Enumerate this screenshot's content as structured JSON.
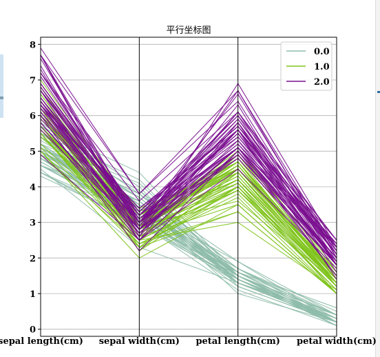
{
  "chart_data": {
    "type": "parallel_coordinates",
    "title": "平行坐标图",
    "axes": [
      "sepal length(cm)",
      "sepal width(cm)",
      "petal length(cm)",
      "petal width(cm)"
    ],
    "ylim": [
      -0.2,
      8.2
    ],
    "yticks": [
      0,
      1,
      2,
      3,
      4,
      5,
      6,
      7,
      8
    ],
    "grid": true,
    "legend_position": "top-right",
    "series": [
      {
        "name": "0.0",
        "color": "#8fbcab",
        "lines": [
          [
            5.1,
            3.5,
            1.4,
            0.2
          ],
          [
            4.9,
            3.0,
            1.4,
            0.2
          ],
          [
            4.7,
            3.2,
            1.3,
            0.2
          ],
          [
            4.6,
            3.1,
            1.5,
            0.2
          ],
          [
            5.0,
            3.6,
            1.4,
            0.2
          ],
          [
            5.4,
            3.9,
            1.7,
            0.4
          ],
          [
            4.6,
            3.4,
            1.4,
            0.3
          ],
          [
            5.0,
            3.4,
            1.5,
            0.2
          ],
          [
            4.4,
            2.9,
            1.4,
            0.2
          ],
          [
            4.9,
            3.1,
            1.5,
            0.1
          ],
          [
            5.4,
            3.7,
            1.5,
            0.2
          ],
          [
            4.8,
            3.4,
            1.6,
            0.2
          ],
          [
            4.8,
            3.0,
            1.4,
            0.1
          ],
          [
            4.3,
            3.0,
            1.1,
            0.1
          ],
          [
            5.8,
            4.0,
            1.2,
            0.2
          ],
          [
            5.7,
            4.4,
            1.5,
            0.4
          ],
          [
            5.4,
            3.9,
            1.3,
            0.4
          ],
          [
            5.1,
            3.5,
            1.4,
            0.3
          ],
          [
            5.7,
            3.8,
            1.7,
            0.3
          ],
          [
            5.1,
            3.8,
            1.5,
            0.3
          ],
          [
            5.4,
            3.4,
            1.7,
            0.2
          ],
          [
            5.1,
            3.7,
            1.5,
            0.4
          ],
          [
            4.6,
            3.6,
            1.0,
            0.2
          ],
          [
            5.1,
            3.3,
            1.7,
            0.5
          ],
          [
            4.8,
            3.4,
            1.9,
            0.2
          ],
          [
            5.0,
            3.0,
            1.6,
            0.2
          ],
          [
            5.0,
            3.4,
            1.6,
            0.4
          ],
          [
            5.2,
            3.5,
            1.5,
            0.2
          ],
          [
            5.2,
            3.4,
            1.4,
            0.2
          ],
          [
            4.7,
            3.2,
            1.6,
            0.2
          ],
          [
            4.8,
            3.1,
            1.6,
            0.2
          ],
          [
            5.4,
            3.4,
            1.5,
            0.4
          ],
          [
            5.2,
            4.1,
            1.5,
            0.1
          ],
          [
            5.5,
            4.2,
            1.4,
            0.2
          ],
          [
            4.9,
            3.1,
            1.5,
            0.2
          ],
          [
            5.0,
            3.2,
            1.2,
            0.2
          ],
          [
            5.5,
            3.5,
            1.3,
            0.2
          ],
          [
            4.9,
            3.6,
            1.4,
            0.1
          ],
          [
            4.4,
            3.0,
            1.3,
            0.2
          ],
          [
            5.1,
            3.4,
            1.5,
            0.2
          ],
          [
            5.0,
            3.5,
            1.3,
            0.3
          ],
          [
            4.5,
            2.3,
            1.3,
            0.3
          ],
          [
            4.4,
            3.2,
            1.3,
            0.2
          ],
          [
            5.0,
            3.5,
            1.6,
            0.6
          ],
          [
            5.1,
            3.8,
            1.9,
            0.4
          ],
          [
            4.8,
            3.0,
            1.4,
            0.3
          ],
          [
            5.1,
            3.8,
            1.6,
            0.2
          ],
          [
            4.6,
            3.2,
            1.4,
            0.2
          ],
          [
            5.3,
            3.7,
            1.5,
            0.2
          ],
          [
            5.0,
            3.3,
            1.4,
            0.2
          ]
        ]
      },
      {
        "name": "1.0",
        "color": "#7fc31c",
        "lines": [
          [
            7.0,
            3.2,
            4.7,
            1.4
          ],
          [
            6.4,
            3.2,
            4.5,
            1.5
          ],
          [
            6.9,
            3.1,
            4.9,
            1.5
          ],
          [
            5.5,
            2.3,
            4.0,
            1.3
          ],
          [
            6.5,
            2.8,
            4.6,
            1.5
          ],
          [
            5.7,
            2.8,
            4.5,
            1.3
          ],
          [
            6.3,
            3.3,
            4.7,
            1.6
          ],
          [
            4.9,
            2.4,
            3.3,
            1.0
          ],
          [
            6.6,
            2.9,
            4.6,
            1.3
          ],
          [
            5.2,
            2.7,
            3.9,
            1.4
          ],
          [
            5.0,
            2.0,
            3.5,
            1.0
          ],
          [
            5.9,
            3.0,
            4.2,
            1.5
          ],
          [
            6.0,
            2.2,
            4.0,
            1.0
          ],
          [
            6.1,
            2.9,
            4.7,
            1.4
          ],
          [
            5.6,
            2.9,
            3.6,
            1.3
          ],
          [
            6.7,
            3.1,
            4.4,
            1.4
          ],
          [
            5.6,
            3.0,
            4.5,
            1.5
          ],
          [
            5.8,
            2.7,
            4.1,
            1.0
          ],
          [
            6.2,
            2.2,
            4.5,
            1.5
          ],
          [
            5.6,
            2.5,
            3.9,
            1.1
          ],
          [
            5.9,
            3.2,
            4.8,
            1.8
          ],
          [
            6.1,
            2.8,
            4.0,
            1.3
          ],
          [
            6.3,
            2.5,
            4.9,
            1.5
          ],
          [
            6.1,
            2.8,
            4.7,
            1.2
          ],
          [
            6.4,
            2.9,
            4.3,
            1.3
          ],
          [
            6.6,
            3.0,
            4.4,
            1.4
          ],
          [
            6.8,
            2.8,
            4.8,
            1.4
          ],
          [
            6.7,
            3.0,
            5.0,
            1.7
          ],
          [
            6.0,
            2.9,
            4.5,
            1.5
          ],
          [
            5.7,
            2.6,
            3.5,
            1.0
          ],
          [
            5.5,
            2.4,
            3.8,
            1.1
          ],
          [
            5.5,
            2.4,
            3.7,
            1.0
          ],
          [
            5.8,
            2.7,
            3.9,
            1.2
          ],
          [
            6.0,
            2.7,
            5.1,
            1.6
          ],
          [
            5.4,
            3.0,
            4.5,
            1.5
          ],
          [
            6.0,
            3.4,
            4.5,
            1.6
          ],
          [
            6.7,
            3.1,
            4.7,
            1.5
          ],
          [
            6.3,
            2.3,
            4.4,
            1.3
          ],
          [
            5.6,
            3.0,
            4.1,
            1.3
          ],
          [
            5.5,
            2.5,
            4.0,
            1.3
          ],
          [
            5.5,
            2.6,
            4.4,
            1.2
          ],
          [
            6.1,
            3.0,
            4.6,
            1.4
          ],
          [
            5.8,
            2.6,
            4.0,
            1.2
          ],
          [
            5.0,
            2.3,
            3.3,
            1.0
          ],
          [
            5.6,
            2.7,
            4.2,
            1.3
          ],
          [
            5.7,
            3.0,
            4.2,
            1.2
          ],
          [
            5.7,
            2.9,
            4.2,
            1.3
          ],
          [
            6.2,
            2.9,
            4.3,
            1.3
          ],
          [
            5.1,
            2.5,
            3.0,
            1.1
          ],
          [
            5.7,
            2.8,
            4.1,
            1.3
          ]
        ]
      },
      {
        "name": "2.0",
        "color": "#7a0e8f",
        "lines": [
          [
            6.3,
            3.3,
            6.0,
            2.5
          ],
          [
            5.8,
            2.7,
            5.1,
            1.9
          ],
          [
            7.1,
            3.0,
            5.9,
            2.1
          ],
          [
            6.3,
            2.9,
            5.6,
            1.8
          ],
          [
            6.5,
            3.0,
            5.8,
            2.2
          ],
          [
            7.6,
            3.0,
            6.6,
            2.1
          ],
          [
            4.9,
            2.5,
            4.5,
            1.7
          ],
          [
            7.3,
            2.9,
            6.3,
            1.8
          ],
          [
            6.7,
            2.5,
            5.8,
            1.8
          ],
          [
            7.2,
            3.6,
            6.1,
            2.5
          ],
          [
            6.5,
            3.2,
            5.1,
            2.0
          ],
          [
            6.4,
            2.7,
            5.3,
            1.9
          ],
          [
            6.8,
            3.0,
            5.5,
            2.1
          ],
          [
            5.7,
            2.5,
            5.0,
            2.0
          ],
          [
            5.8,
            2.8,
            5.1,
            2.4
          ],
          [
            6.4,
            3.2,
            5.3,
            2.3
          ],
          [
            6.5,
            3.0,
            5.5,
            1.8
          ],
          [
            7.7,
            3.8,
            6.7,
            2.2
          ],
          [
            7.7,
            2.6,
            6.9,
            2.3
          ],
          [
            6.0,
            2.2,
            5.0,
            1.5
          ],
          [
            6.9,
            3.2,
            5.7,
            2.3
          ],
          [
            5.6,
            2.8,
            4.9,
            2.0
          ],
          [
            7.7,
            2.8,
            6.7,
            2.0
          ],
          [
            6.3,
            2.7,
            4.9,
            1.8
          ],
          [
            6.7,
            3.3,
            5.7,
            2.1
          ],
          [
            7.2,
            3.2,
            6.0,
            1.8
          ],
          [
            6.2,
            2.8,
            4.8,
            1.8
          ],
          [
            6.1,
            3.0,
            4.9,
            1.8
          ],
          [
            6.4,
            2.8,
            5.6,
            2.1
          ],
          [
            7.2,
            3.0,
            5.8,
            1.6
          ],
          [
            7.4,
            2.8,
            6.1,
            1.9
          ],
          [
            7.9,
            3.8,
            6.4,
            2.0
          ],
          [
            6.4,
            2.8,
            5.6,
            2.2
          ],
          [
            6.3,
            2.8,
            5.1,
            1.5
          ],
          [
            6.1,
            2.6,
            5.6,
            1.4
          ],
          [
            7.7,
            3.0,
            6.1,
            2.3
          ],
          [
            6.3,
            3.4,
            5.6,
            2.4
          ],
          [
            6.4,
            3.1,
            5.5,
            1.8
          ],
          [
            6.0,
            3.0,
            4.8,
            1.8
          ],
          [
            6.9,
            3.1,
            5.4,
            2.1
          ],
          [
            6.7,
            3.1,
            5.6,
            2.4
          ],
          [
            6.9,
            3.1,
            5.1,
            2.3
          ],
          [
            5.8,
            2.7,
            5.1,
            1.9
          ],
          [
            6.8,
            3.2,
            5.9,
            2.3
          ],
          [
            6.7,
            3.3,
            5.7,
            2.5
          ],
          [
            6.7,
            3.0,
            5.2,
            2.3
          ],
          [
            6.3,
            2.5,
            5.0,
            1.9
          ],
          [
            6.5,
            3.0,
            5.2,
            2.0
          ],
          [
            6.2,
            3.4,
            5.4,
            2.3
          ],
          [
            5.9,
            3.0,
            5.1,
            1.8
          ]
        ]
      }
    ]
  }
}
